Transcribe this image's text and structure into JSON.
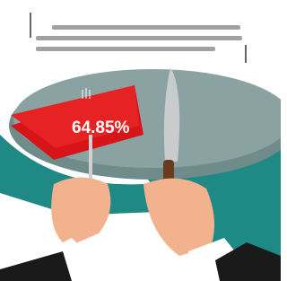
{
  "slice_label": "64.85%"
}
